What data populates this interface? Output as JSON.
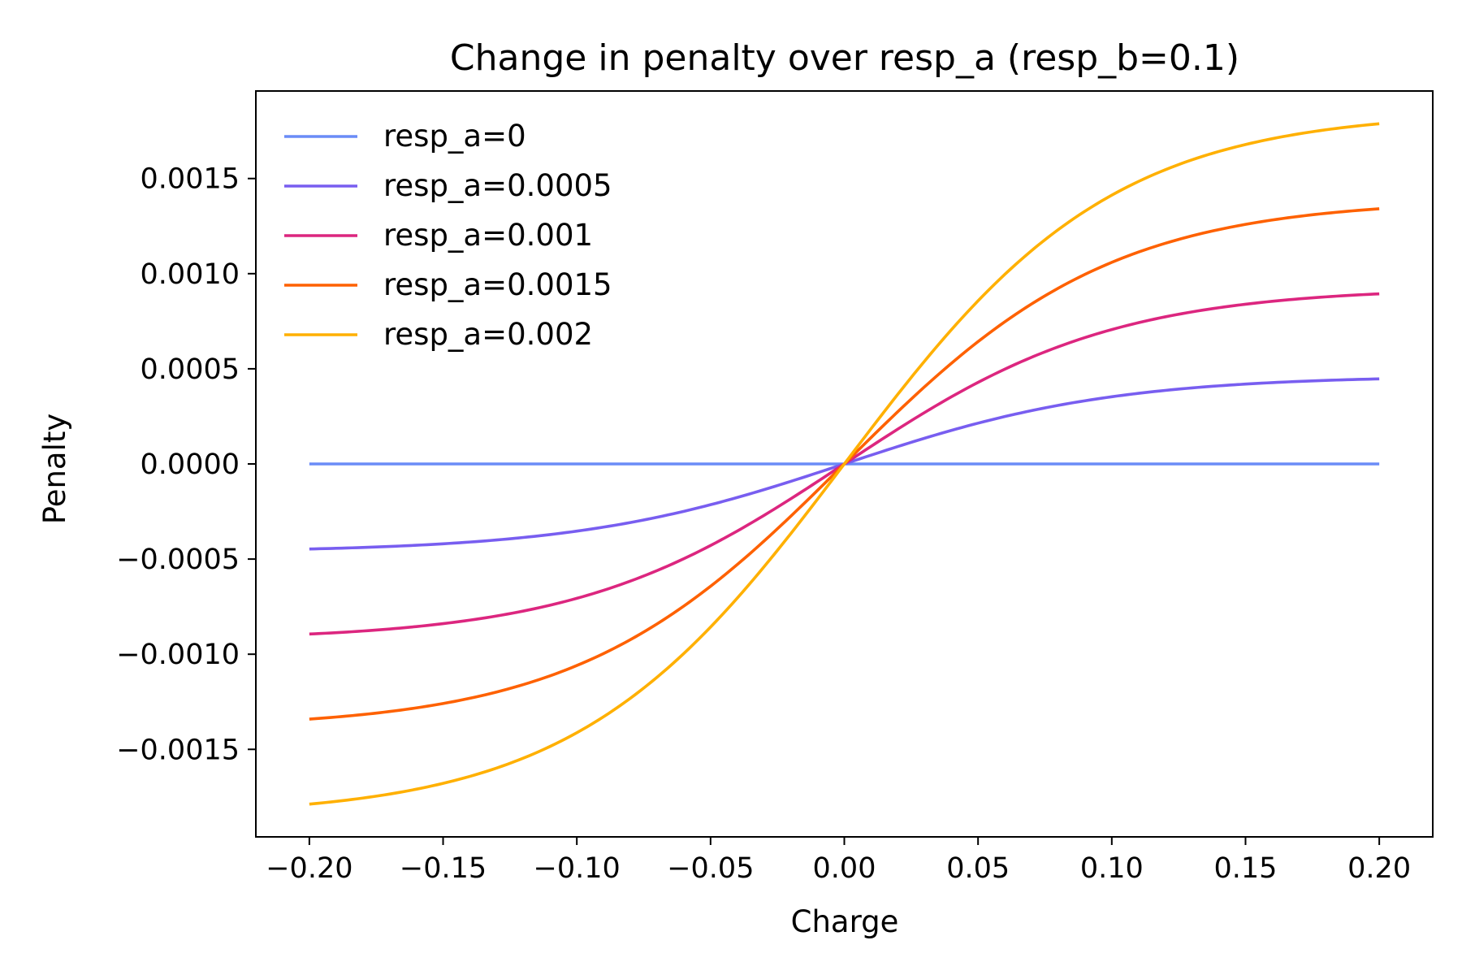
{
  "chart_data": {
    "type": "line",
    "title": "Change in penalty over resp_a (resp_b=0.1)",
    "xlabel": "Charge",
    "ylabel": "Penalty",
    "xlim": [
      -0.22,
      0.22
    ],
    "ylim": [
      -0.00196,
      0.00196
    ],
    "xticks": [
      -0.2,
      -0.15,
      -0.1,
      -0.05,
      0.0,
      0.05,
      0.1,
      0.15,
      0.2
    ],
    "xtick_labels": [
      "−0.20",
      "−0.15",
      "−0.10",
      "−0.05",
      "0.00",
      "0.05",
      "0.10",
      "0.15",
      "0.20"
    ],
    "yticks": [
      -0.0015,
      -0.001,
      -0.0005,
      0.0,
      0.0005,
      0.001,
      0.0015
    ],
    "ytick_labels": [
      "−0.0015",
      "−0.0010",
      "−0.0005",
      "0.0000",
      "0.0005",
      "0.0010",
      "0.0015"
    ],
    "grid": false,
    "legend_position": "upper-left",
    "x": [
      -0.2,
      -0.175,
      -0.15,
      -0.125,
      -0.1,
      -0.075,
      -0.05,
      -0.025,
      0.0,
      0.025,
      0.05,
      0.075,
      0.1,
      0.125,
      0.15,
      0.175,
      0.2
    ],
    "series": [
      {
        "name": "resp_a=0",
        "color": "#6a8cf7",
        "values": [
          0,
          0,
          0,
          0,
          0,
          0,
          0,
          0,
          0,
          0,
          0,
          0,
          0,
          0,
          0,
          0,
          0
        ]
      },
      {
        "name": "resp_a=0.0005",
        "color": "#785ef0",
        "values": [
          -0.000447,
          -0.000432,
          -0.000412,
          -0.000385,
          -0.000346,
          -0.00029,
          -0.000216,
          -0.000117,
          0.0,
          0.000117,
          0.000216,
          0.00029,
          0.000346,
          0.000385,
          0.000412,
          0.000432,
          0.000447
        ]
      },
      {
        "name": "resp_a=0.001",
        "color": "#dc267f",
        "values": [
          -0.000894,
          -0.000864,
          -0.000824,
          -0.00077,
          -0.000692,
          -0.00058,
          -0.000432,
          -0.000234,
          0.0,
          0.000234,
          0.000432,
          0.00058,
          0.000692,
          0.00077,
          0.000824,
          0.000864,
          0.000894
        ]
      },
      {
        "name": "resp_a=0.0015",
        "color": "#fe6100",
        "values": [
          -0.001341,
          -0.001296,
          -0.001236,
          -0.001155,
          -0.001038,
          -0.00087,
          -0.000648,
          -0.000351,
          0.0,
          0.000351,
          0.000648,
          0.00087,
          0.001038,
          0.001155,
          0.001236,
          0.001296,
          0.001341
        ]
      },
      {
        "name": "resp_a=0.002",
        "color": "#ffb000",
        "values": [
          -0.001788,
          -0.001728,
          -0.001648,
          -0.00154,
          -0.001384,
          -0.00116,
          -0.000864,
          -0.000468,
          0.0,
          0.000468,
          0.000864,
          0.00116,
          0.001384,
          0.00154,
          0.001648,
          0.001728,
          0.001788
        ]
      }
    ]
  }
}
